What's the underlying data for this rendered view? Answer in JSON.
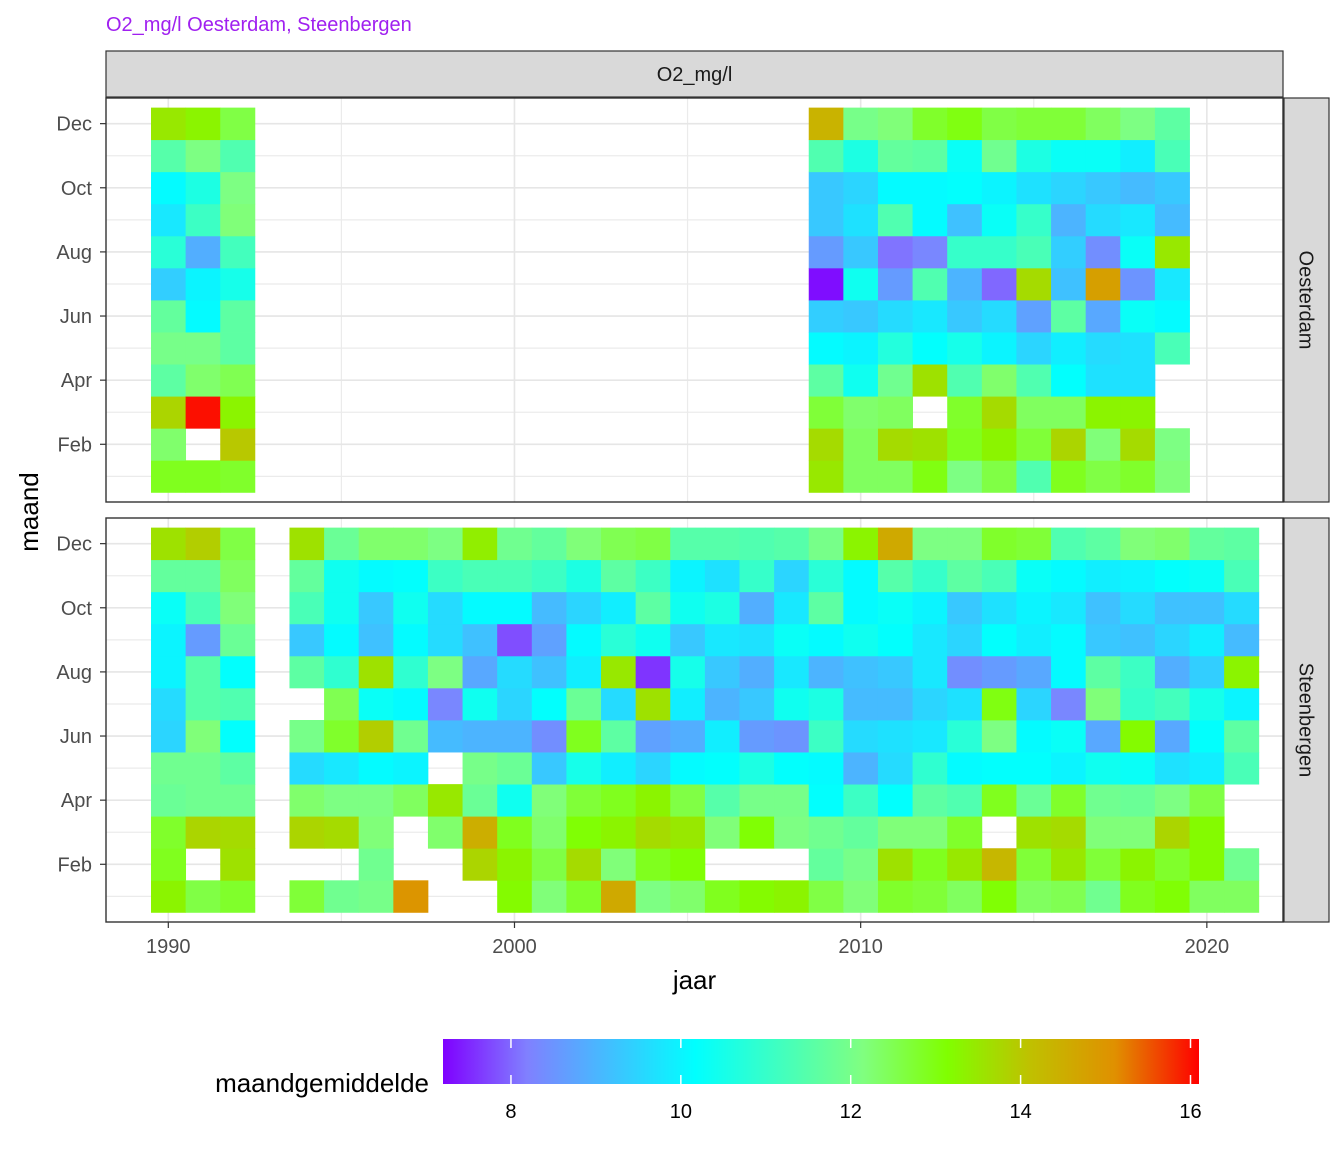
{
  "chart_data": {
    "type": "heatmap",
    "title": "O2_mg/l Oesterdam, Steenbergen",
    "title_color": "#a020f0",
    "facet_column": "O2_mg/l",
    "xlabel": "jaar",
    "ylabel": "maand",
    "x_ticks": [
      1990,
      2000,
      2010,
      2020
    ],
    "y_ticks": [
      "Feb",
      "Apr",
      "Jun",
      "Aug",
      "Oct",
      "Dec"
    ],
    "xlim": [
      1988.2,
      2022.2
    ],
    "ylim": [
      0.2,
      12.8
    ],
    "months": [
      "Jan",
      "Feb",
      "Mar",
      "Apr",
      "May",
      "Jun",
      "Jul",
      "Aug",
      "Sep",
      "Oct",
      "Nov",
      "Dec"
    ],
    "legend": {
      "title": "maandgemiddelde",
      "position": "bottom",
      "ticks": [
        8,
        10,
        12,
        14,
        16
      ],
      "range": [
        7.2,
        16.1
      ],
      "colors": [
        "#7f00ff",
        "#8080ff",
        "#40c0ff",
        "#00ffff",
        "#40ffc0",
        "#80ff80",
        "#80ff00",
        "#c0c000",
        "#e09000",
        "#ff0000"
      ]
    },
    "panels": [
      {
        "name": "Oesterdam",
        "start_year": 1990,
        "values": [
          [
            12.9,
            12.3,
            13.8,
            11.6,
            12.0,
            11.7,
            9.4,
            10.8,
            9.8,
            10.1,
            11.5,
            13.5
          ],
          [
            12.9,
            null,
            16.0,
            12.3,
            12.0,
            10.1,
            10.0,
            8.9,
            11.1,
            10.6,
            12.1,
            13.3
          ],
          [
            12.8,
            14.0,
            13.3,
            12.5,
            11.6,
            11.6,
            10.5,
            11.2,
            12.2,
            12.1,
            11.4,
            12.6
          ],
          null,
          null,
          null,
          null,
          null,
          null,
          null,
          null,
          null,
          null,
          null,
          null,
          null,
          null,
          null,
          null,
          [
            13.5,
            13.7,
            12.7,
            11.6,
            10.1,
            9.4,
            7.3,
            8.6,
            9.3,
            9.3,
            11.4,
            14.4
          ],
          [
            12.4,
            12.4,
            12.3,
            10.4,
            10.0,
            9.3,
            10.4,
            9.3,
            9.7,
            9.5,
            10.6,
            12.0
          ],
          [
            12.4,
            13.7,
            12.4,
            11.9,
            10.7,
            9.6,
            8.6,
            8.1,
            11.4,
            10.1,
            11.7,
            12.2
          ],
          [
            13.0,
            13.6,
            null,
            13.6,
            10.2,
            9.8,
            11.4,
            8.3,
            10.1,
            10.1,
            11.6,
            12.8
          ],
          [
            12.1,
            12.9,
            12.8,
            11.4,
            10.5,
            9.3,
            9.0,
            11.0,
            9.2,
            10.2,
            10.3,
            13.0
          ],
          [
            12.6,
            13.3,
            13.7,
            12.3,
            10.0,
            9.6,
            8.0,
            11.0,
            10.3,
            10.0,
            11.9,
            12.6
          ],
          [
            11.4,
            12.7,
            12.4,
            11.4,
            9.5,
            8.7,
            13.7,
            11.3,
            11.0,
            9.7,
            10.6,
            12.7
          ],
          [
            12.9,
            13.8,
            12.4,
            10.2,
            9.9,
            11.6,
            9.2,
            9.4,
            9.0,
            9.5,
            10.3,
            12.7
          ],
          [
            12.6,
            12.2,
            13.3,
            9.7,
            9.6,
            8.8,
            14.8,
            8.4,
            9.6,
            9.3,
            10.3,
            12.4
          ],
          [
            12.8,
            13.7,
            13.3,
            9.7,
            9.7,
            10.3,
            8.5,
            10.3,
            9.8,
            9.1,
            9.9,
            12.1
          ],
          [
            12.2,
            12.1,
            null,
            null,
            11.3,
            10.1,
            9.8,
            13.5,
            9.1,
            9.3,
            11.3,
            11.6
          ]
        ]
      },
      {
        "name": "Steenbergen",
        "start_year": 1990,
        "values": [
          [
            13.3,
            12.9,
            12.8,
            11.8,
            11.9,
            9.5,
            9.6,
            10.0,
            10.0,
            10.3,
            11.7,
            13.6
          ],
          [
            12.6,
            null,
            13.8,
            11.9,
            11.9,
            12.2,
            11.5,
            11.5,
            8.6,
            11.3,
            11.7,
            13.9
          ],
          [
            12.8,
            13.6,
            13.7,
            11.9,
            11.6,
            10.2,
            11.4,
            10.2,
            11.8,
            12.2,
            12.4,
            12.6
          ],
          null,
          [
            12.7,
            null,
            13.8,
            12.3,
            9.6,
            12.0,
            null,
            11.6,
            9.3,
            11.3,
            11.7,
            13.6
          ],
          [
            11.9,
            null,
            13.7,
            12.1,
            9.8,
            12.8,
            12.5,
            10.9,
            10.1,
            10.4,
            10.4,
            11.8
          ],
          [
            12.0,
            11.9,
            12.2,
            12.1,
            10.1,
            13.9,
            10.3,
            13.6,
            9.2,
            9.3,
            10.1,
            12.3
          ],
          [
            15.0,
            null,
            null,
            12.4,
            10.0,
            11.9,
            10.1,
            10.9,
            10.1,
            10.4,
            10.2,
            12.3
          ],
          [
            null,
            null,
            12.3,
            13.5,
            null,
            9.1,
            8.3,
            12.1,
            9.6,
            9.6,
            11.1,
            12.1
          ],
          [
            null,
            13.8,
            14.5,
            11.8,
            12.0,
            9.0,
            10.4,
            8.8,
            9.2,
            10.1,
            11.3,
            13.4
          ],
          [
            13.2,
            13.3,
            12.9,
            10.4,
            11.8,
            9.0,
            9.5,
            9.6,
            7.8,
            10.1,
            11.3,
            11.9
          ],
          [
            12.2,
            12.6,
            12.3,
            12.2,
            9.3,
            8.4,
            10.2,
            9.2,
            8.7,
            9.1,
            11.1,
            11.7
          ],
          [
            12.8,
            13.7,
            13.1,
            12.7,
            10.5,
            12.9,
            11.8,
            9.9,
            10.1,
            9.5,
            10.6,
            12.2
          ],
          [
            14.6,
            12.2,
            13.3,
            12.9,
            9.9,
            11.6,
            9.6,
            13.5,
            10.8,
            9.9,
            11.6,
            12.5
          ],
          [
            12.1,
            12.9,
            13.7,
            13.3,
            9.5,
            8.7,
            13.6,
            7.6,
            10.4,
            11.6,
            11.1,
            12.6
          ],
          [
            12.3,
            13.1,
            13.5,
            12.6,
            10.1,
            8.9,
            9.9,
            10.5,
            9.3,
            10.4,
            10.0,
            11.5
          ],
          [
            12.9,
            null,
            12.2,
            11.5,
            10.2,
            9.9,
            9.0,
            9.3,
            9.8,
            10.6,
            9.7,
            11.5
          ],
          [
            13.2,
            null,
            13.1,
            12.0,
            10.6,
            8.6,
            9.3,
            8.9,
            9.7,
            8.9,
            11.0,
            11.4
          ],
          [
            13.3,
            null,
            12.1,
            12.0,
            10.2,
            8.5,
            10.4,
            9.8,
            10.3,
            9.8,
            9.5,
            11.5
          ],
          [
            12.6,
            11.7,
            11.9,
            10.2,
            10.1,
            11.1,
            10.6,
            9.0,
            10.1,
            11.6,
            10.8,
            12.0
          ],
          [
            12.2,
            12.0,
            11.7,
            11.1,
            9.0,
            9.6,
            9.1,
            9.2,
            10.4,
            10.1,
            10.1,
            13.3
          ],
          [
            12.8,
            13.6,
            12.2,
            10.2,
            9.6,
            9.7,
            9.1,
            9.3,
            10.2,
            10.3,
            11.5,
            14.6
          ],
          [
            12.7,
            12.9,
            12.2,
            11.6,
            10.9,
            9.8,
            9.5,
            9.8,
            9.8,
            10.0,
            11.0,
            12.1
          ],
          [
            12.4,
            13.5,
            12.8,
            11.4,
            10.1,
            10.8,
            9.7,
            8.4,
            9.5,
            9.3,
            11.6,
            12.1
          ],
          [
            13.1,
            14.3,
            null,
            12.9,
            10.2,
            12.1,
            13.0,
            8.6,
            10.2,
            9.7,
            11.3,
            12.8
          ],
          [
            12.4,
            12.7,
            13.6,
            11.8,
            10.2,
            10.1,
            9.5,
            8.8,
            9.9,
            10.0,
            10.3,
            12.7
          ],
          [
            12.5,
            13.5,
            13.7,
            12.8,
            10.0,
            10.3,
            8.3,
            10.1,
            10.1,
            9.8,
            10.1,
            11.4
          ],
          [
            11.9,
            12.7,
            12.2,
            11.9,
            10.4,
            8.8,
            12.2,
            11.6,
            9.3,
            9.2,
            9.9,
            11.6
          ],
          [
            12.9,
            13.3,
            12.2,
            11.8,
            10.3,
            13.2,
            11.0,
            11.1,
            9.2,
            9.6,
            10.0,
            12.2
          ],
          [
            13.1,
            12.8,
            13.8,
            12.1,
            9.7,
            8.8,
            11.2,
            8.9,
            9.5,
            9.2,
            10.2,
            12.3
          ],
          [
            12.4,
            13.2,
            13.2,
            12.6,
            9.9,
            10.2,
            10.5,
            9.4,
            9.9,
            9.2,
            10.3,
            11.7
          ],
          [
            12.4,
            11.9,
            null,
            null,
            11.3,
            11.6,
            10.0,
            13.3,
            9.1,
            9.6,
            11.3,
            11.6
          ]
        ]
      }
    ]
  }
}
